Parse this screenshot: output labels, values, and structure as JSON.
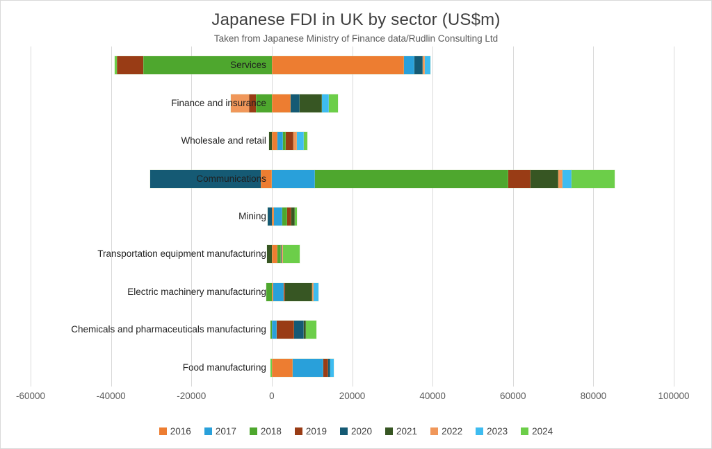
{
  "page": {
    "background": "#ffffff",
    "border_color": "#d9d9d9",
    "text_colors": {
      "title": "#3f3f3f",
      "subtitle": "#595959",
      "axis": "#595959",
      "category": "#1f1f1f",
      "legend": "#404040"
    }
  },
  "chart_data": {
    "type": "bar",
    "orientation": "horizontal-stacked",
    "title": "Japanese FDI in UK by sector (US$m)",
    "subtitle": "Taken from Japanese Ministry of Finance data/Rudlin Consulting Ltd",
    "grid": "vertical-light-gray",
    "legend_position": "bottom",
    "x_axis": {
      "min": -60000,
      "max": 100000,
      "tick_step": 20000,
      "ticks": [
        -60000,
        -40000,
        -20000,
        0,
        20000,
        40000,
        60000,
        80000,
        100000
      ],
      "tick_labels": [
        "-60000",
        "-40000",
        "-20000",
        "0",
        "20000",
        "40000",
        "60000",
        "80000",
        "100000"
      ]
    },
    "series": [
      "2016",
      "2017",
      "2018",
      "2019",
      "2020",
      "2021",
      "2022",
      "2023",
      "2024"
    ],
    "series_colors": {
      "2016": "#ED7D31",
      "2017": "#29A0DA",
      "2018": "#4EA72E",
      "2019": "#993C15",
      "2020": "#155A74",
      "2021": "#375623",
      "2022": "#F0975A",
      "2023": "#3EBCF0",
      "2024": "#6CCE49"
    },
    "categories": [
      {
        "label": "Services",
        "values": {
          "2016": 32900,
          "2017": 2600,
          "2018": -32000,
          "2019": -6500,
          "2020": 2100,
          "2022": 500,
          "2023": 1400,
          "2024": -600
        }
      },
      {
        "label": "Finance and insurance",
        "values": {
          "2016": 4700,
          "2018": -4000,
          "2019": -1700,
          "2020": 2250,
          "2021": 5500,
          "2022": -4450,
          "2023": 1700,
          "2024": 2250
        }
      },
      {
        "label": "Wholesale and retail",
        "values": {
          "2016": 1400,
          "2017": 1400,
          "2018": 700,
          "2019": 1900,
          "2021": -700,
          "2022": 870,
          "2023": 1700,
          "2024": 870
        }
      },
      {
        "label": "Communications",
        "values": {
          "2016": -2800,
          "2017": 10700,
          "2018": 48100,
          "2019": 5500,
          "2020": -27400,
          "2021": 6900,
          "2022": 1200,
          "2023": 2250,
          "2024": 10700
        }
      },
      {
        "label": "Mining",
        "values": {
          "2016": 500,
          "2017": 2100,
          "2018": 1200,
          "2019": 1000,
          "2020": -1000,
          "2021": 900,
          "2024": 600
        }
      },
      {
        "label": "Transportation equipment manufacturing",
        "values": {
          "2016": 1400,
          "2018": 900,
          "2020": 200,
          "2021": -1200,
          "2022": 350,
          "2024": 4150
        }
      },
      {
        "label": "Electric machinery manufacturing",
        "values": {
          "2016": 350,
          "2017": 2600,
          "2018": -1400,
          "2019": 350,
          "2021": 6750,
          "2022": 350,
          "2023": 1200
        }
      },
      {
        "label": "Chemicals and pharmaceuticals manufacturing",
        "values": {
          "2017": 1200,
          "2018": -400,
          "2019": 4330,
          "2020": 2400,
          "2021": 520,
          "2024": 2600
        }
      },
      {
        "label": "Food manufacturing",
        "values": {
          "2016": 5200,
          "2017": 7600,
          "2019": 1200,
          "2020": 500,
          "2023": 870,
          "2024": -400
        }
      }
    ]
  }
}
